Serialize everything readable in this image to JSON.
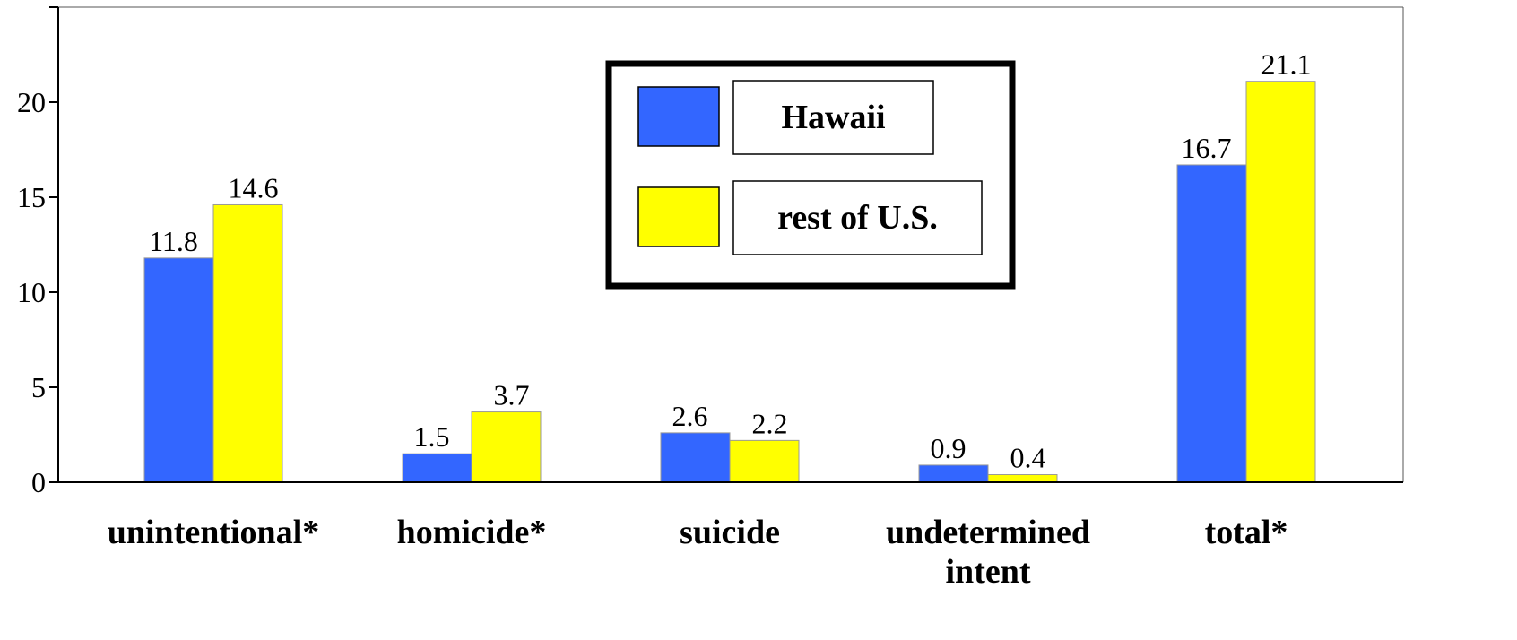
{
  "chart_data": {
    "type": "bar",
    "categories": [
      "unintentional*",
      "homicide*",
      "suicide",
      "undetermined intent",
      "total*"
    ],
    "series": [
      {
        "name": "Hawaii",
        "color": "#3366ff",
        "values": [
          11.8,
          1.5,
          2.6,
          0.9,
          16.7
        ]
      },
      {
        "name": "rest of U.S.",
        "color": "#ffff00",
        "values": [
          14.6,
          3.7,
          2.2,
          0.4,
          21.1
        ]
      }
    ],
    "ylim": [
      0,
      25
    ],
    "yticks": [
      0,
      5,
      10,
      15,
      20
    ]
  }
}
